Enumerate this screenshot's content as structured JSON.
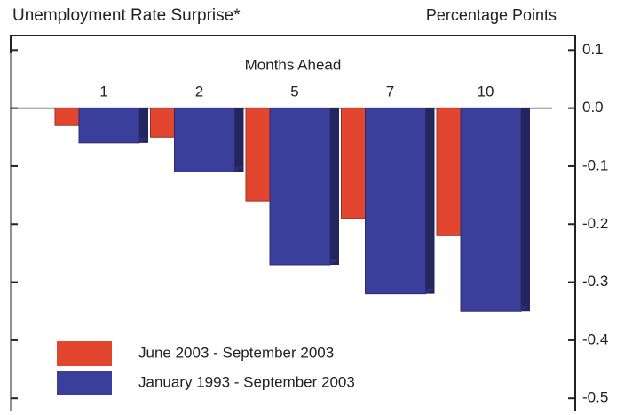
{
  "chart_data": {
    "type": "bar",
    "title": "Unemployment Rate Surprise*",
    "y_label": "Percentage Points",
    "x_label": "Months Ahead",
    "categories": [
      "1",
      "2",
      "5",
      "7",
      "10"
    ],
    "series": [
      {
        "name": "June 2003 - September 2003",
        "color": "#e2462f",
        "values": [
          -0.03,
          -0.05,
          -0.16,
          -0.19,
          -0.22
        ]
      },
      {
        "name": "January 1993 - September 2003",
        "color": "#3b3f9c",
        "values": [
          -0.06,
          -0.11,
          -0.27,
          -0.32,
          -0.35
        ]
      }
    ],
    "ylim": [
      -0.515,
      0.125
    ],
    "yticks": [
      0.1,
      {
        "value": 0,
        "label": "0.0"
      },
      -0.1,
      -0.2,
      -0.3,
      -0.4,
      -0.5
    ],
    "legend": "lower left"
  }
}
